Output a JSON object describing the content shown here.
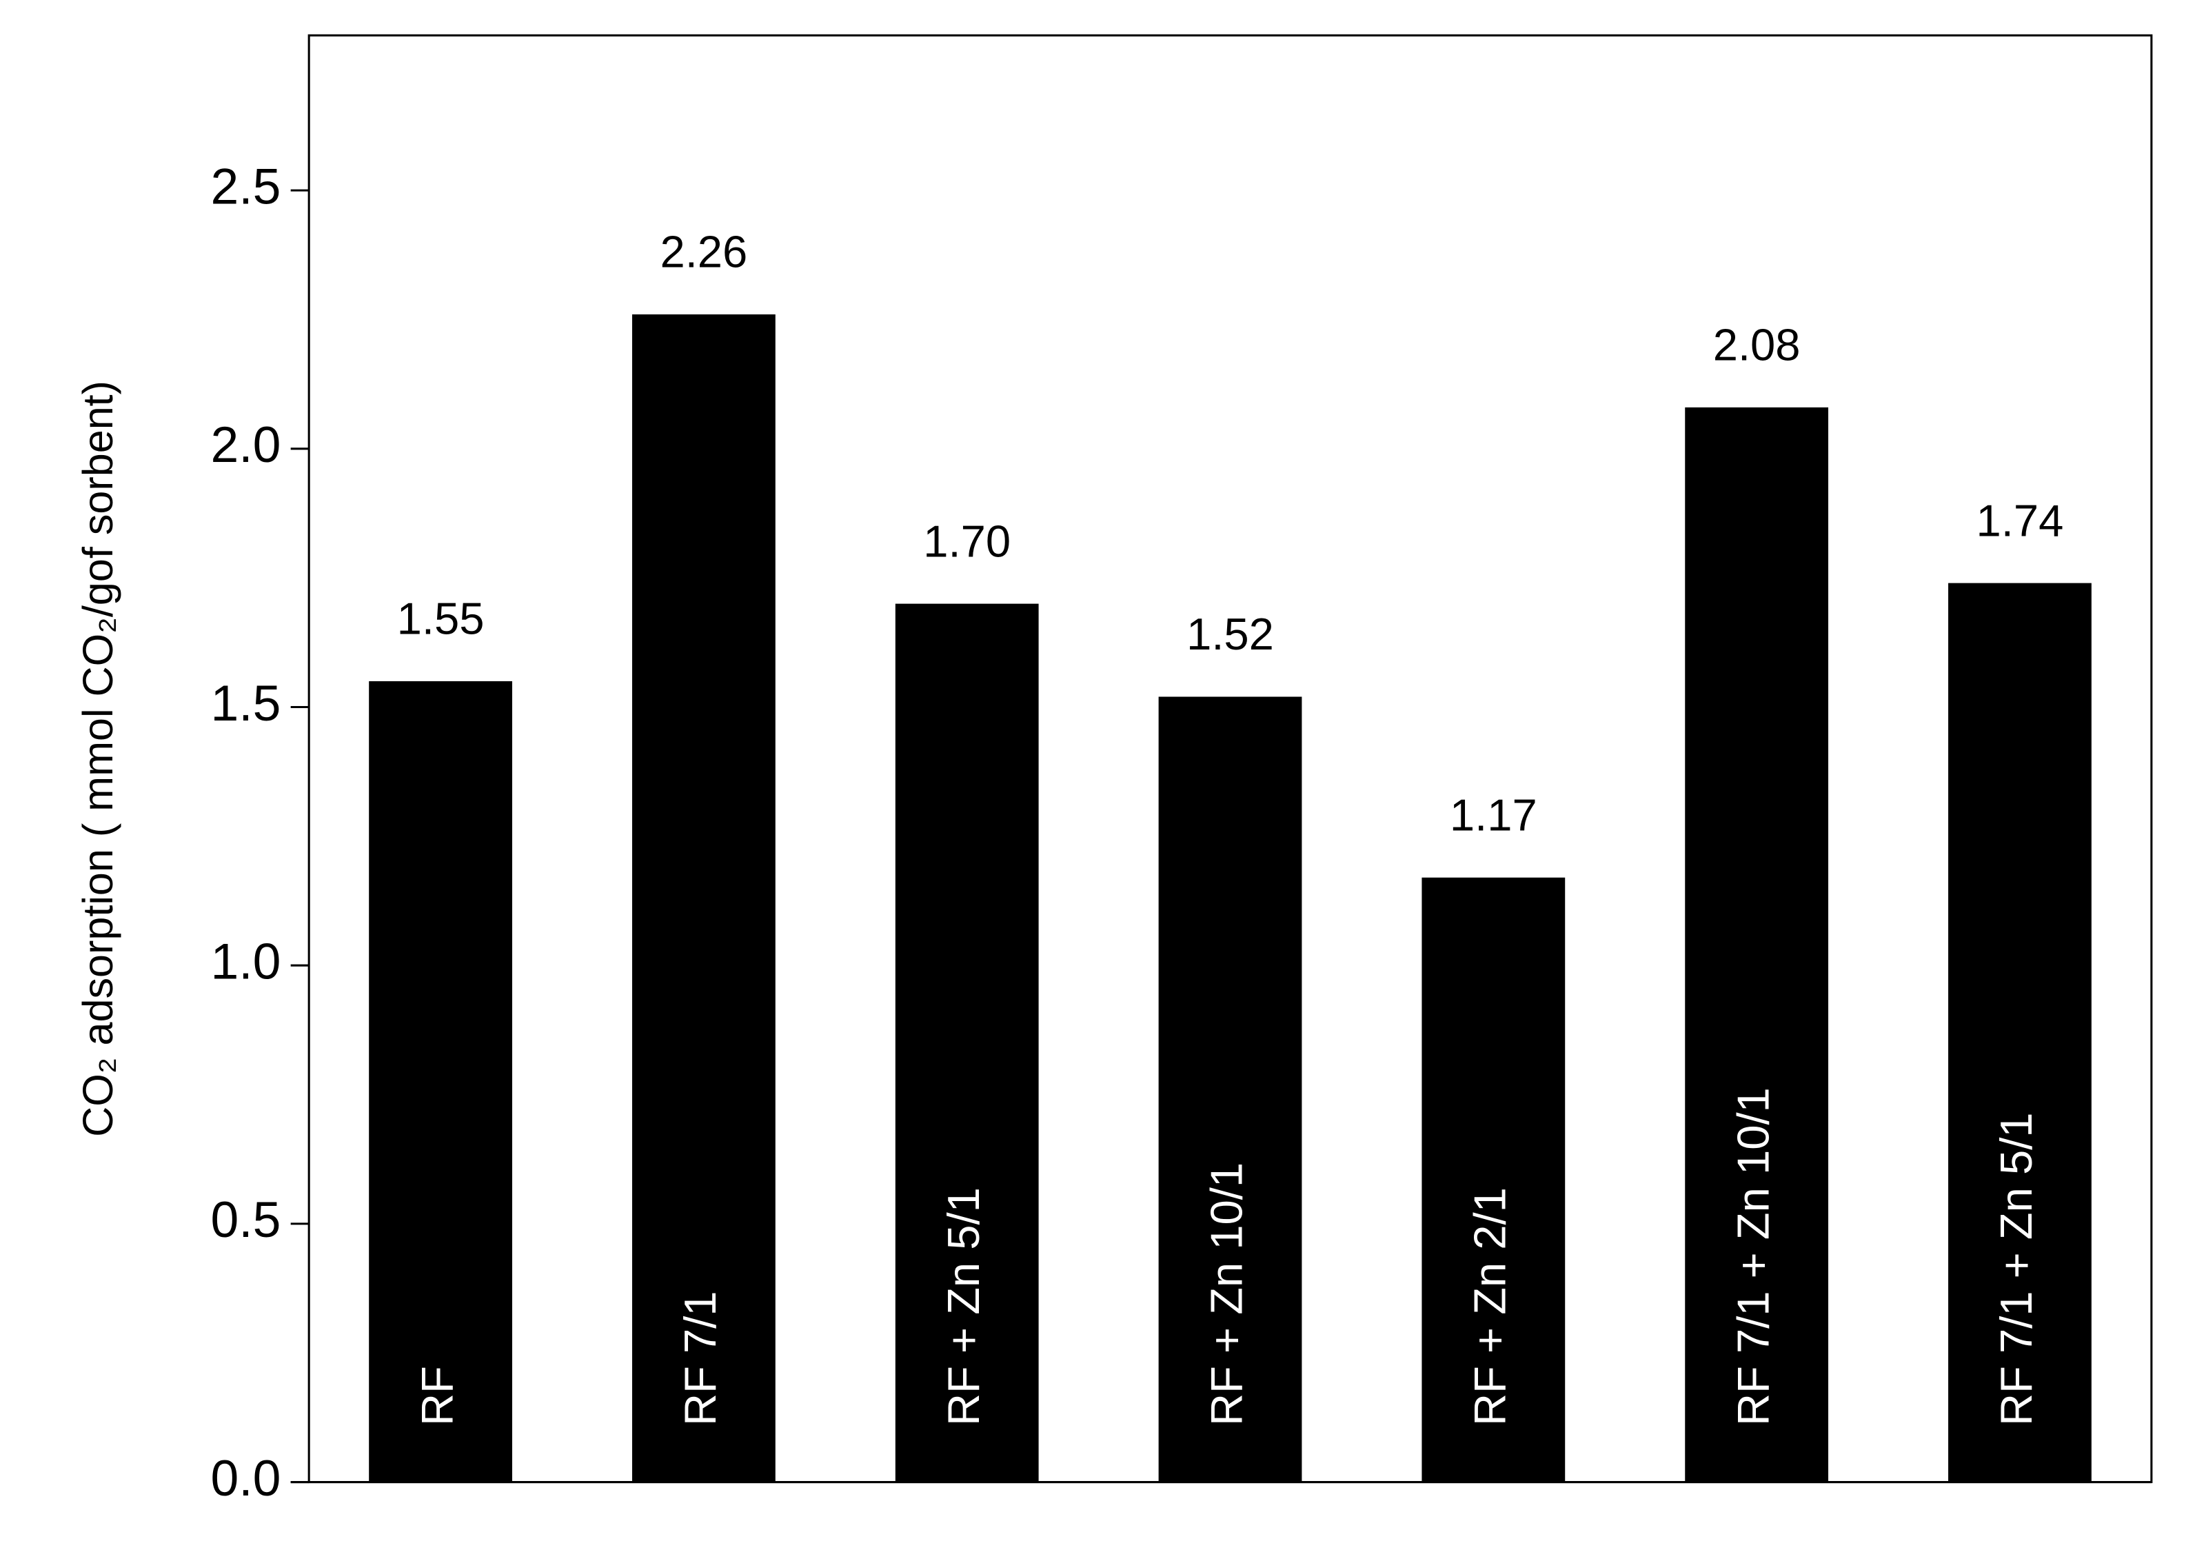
{
  "chart_data": {
    "type": "bar",
    "y_label": "CO₂ adsorption ( mmol CO₂/gof sorbent)",
    "categories": [
      "RF",
      "RF 7/1",
      "RF + Zn 5/1",
      "RF + Zn 10/1",
      "RF + Zn 2/1",
      "RF 7/1 + Zn 10/1",
      "RF 7/1 + Zn 5/1"
    ],
    "values": [
      1.55,
      2.26,
      1.7,
      1.52,
      1.17,
      2.08,
      1.74
    ],
    "value_labels": [
      "1.55",
      "2.26",
      "1.70",
      "1.52",
      "1.17",
      "2.08",
      "1.74"
    ],
    "color": "#000000",
    "ylim": [
      0,
      2.8
    ],
    "yticks": [
      {
        "value": 0,
        "label": "0.0"
      },
      0.5,
      {
        "value": 1,
        "label": "1.0"
      },
      1.5,
      {
        "value": 2,
        "label": "2.0"
      },
      2.5
    ],
    "grid": false
  }
}
